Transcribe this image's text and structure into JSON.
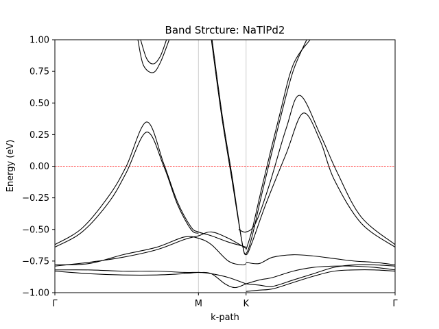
{
  "chart_data": {
    "type": "line",
    "title": "Band Strcture: NaTlPd2",
    "xlabel": "k-path",
    "ylabel": "Energy (eV)",
    "xlim": [
      0,
      5.0
    ],
    "ylim": [
      -1.0,
      1.0
    ],
    "xticks": [
      {
        "label": "Γ",
        "x": 0.0
      },
      {
        "label": "M",
        "x": 2.11
      },
      {
        "label": "K",
        "x": 2.81
      },
      {
        "label": "Γ",
        "x": 5.0
      }
    ],
    "yticks": [
      "−1.00",
      "−0.75",
      "−0.50",
      "−0.25",
      "0.00",
      "0.25",
      "0.50",
      "0.75",
      "1.00"
    ],
    "ytick_values": [
      -1.0,
      -0.75,
      -0.5,
      -0.25,
      0.0,
      0.25,
      0.5,
      0.75,
      1.0
    ],
    "fermi_level": 0.0,
    "grid": "vertical at high-symmetry points",
    "colors": {
      "band": "#000000",
      "fermi": "#ff0000",
      "vline": "#cccccc"
    },
    "series": [
      {
        "x": [
          0.0,
          0.4,
          0.8,
          1.05,
          1.35,
          1.6,
          1.8,
          2.0,
          2.11
        ],
        "y": [
          -0.64,
          -0.52,
          -0.28,
          -0.05,
          0.27,
          0.0,
          -0.3,
          -0.5,
          -0.53
        ]
      },
      {
        "x": [
          0.0,
          0.4,
          0.8,
          1.05,
          1.35,
          1.6,
          1.8,
          2.0,
          2.11,
          2.3,
          2.55,
          2.75,
          2.81
        ],
        "y": [
          -0.62,
          -0.49,
          -0.23,
          0.0,
          0.35,
          0.02,
          -0.28,
          -0.48,
          -0.52,
          -0.55,
          -0.6,
          -0.63,
          -0.64
        ]
      },
      {
        "x": [
          1.22,
          1.3,
          1.44,
          1.55,
          1.68
        ],
        "y": [
          1.0,
          0.8,
          0.74,
          0.82,
          1.0
        ]
      },
      {
        "x": [
          1.26,
          1.35,
          1.45,
          1.55,
          1.64
        ],
        "y": [
          1.0,
          0.85,
          0.81,
          0.87,
          1.0
        ]
      },
      {
        "x": [
          2.3,
          2.45,
          2.6,
          2.75,
          2.81,
          2.9,
          3.1,
          3.4,
          3.65,
          3.9,
          4.1,
          4.5,
          5.0
        ],
        "y": [
          1.0,
          0.4,
          -0.1,
          -0.6,
          -0.7,
          -0.6,
          -0.3,
          0.1,
          0.42,
          0.2,
          -0.1,
          -0.45,
          -0.64
        ]
      },
      {
        "x": [
          2.31,
          2.46,
          2.61,
          2.75,
          2.81,
          2.9,
          3.05,
          3.3,
          3.5,
          3.7
        ],
        "y": [
          1.0,
          0.4,
          -0.1,
          -0.6,
          -0.69,
          -0.55,
          -0.2,
          0.35,
          0.75,
          1.0
        ]
      },
      {
        "x": [
          2.81,
          2.9,
          3.05,
          3.3,
          3.5,
          3.75
        ],
        "y": [
          -0.66,
          -0.5,
          -0.15,
          0.4,
          0.8,
          1.0
        ]
      },
      {
        "x": [
          2.7,
          2.81,
          2.95,
          3.15,
          3.4,
          3.6,
          3.9,
          4.15,
          4.5,
          5.0
        ],
        "y": [
          -0.5,
          -0.52,
          -0.45,
          -0.15,
          0.3,
          0.56,
          0.25,
          -0.05,
          -0.4,
          -0.62
        ]
      },
      {
        "x": [
          0.0,
          0.5,
          1.0,
          1.5,
          1.9,
          2.11,
          2.3,
          2.55,
          2.81
        ],
        "y": [
          -0.79,
          -0.76,
          -0.72,
          -0.66,
          -0.58,
          -0.55,
          -0.52,
          -0.57,
          -0.65
        ]
      },
      {
        "x": [
          0.0,
          0.5,
          1.0,
          1.5,
          1.9,
          2.11,
          2.3,
          2.55,
          2.75,
          2.81
        ],
        "y": [
          -0.78,
          -0.77,
          -0.7,
          -0.64,
          -0.56,
          -0.57,
          -0.62,
          -0.75,
          -0.78,
          -0.77
        ]
      },
      {
        "x": [
          0.0,
          0.5,
          1.0,
          1.5,
          1.9,
          2.11,
          2.3,
          2.5,
          2.65,
          2.81
        ],
        "y": [
          -0.82,
          -0.82,
          -0.83,
          -0.83,
          -0.84,
          -0.84,
          -0.85,
          -0.93,
          -0.96,
          -0.93
        ]
      },
      {
        "x": [
          0.0,
          0.5,
          1.0,
          1.5,
          1.9,
          2.11,
          2.3,
          2.55,
          2.81
        ],
        "y": [
          -0.83,
          -0.85,
          -0.86,
          -0.86,
          -0.85,
          -0.84,
          -0.85,
          -0.88,
          -0.93
        ]
      },
      {
        "x": [
          2.81,
          3.0,
          3.2,
          3.5,
          3.8,
          4.1,
          4.4,
          4.7,
          5.0
        ],
        "y": [
          -0.76,
          -0.77,
          -0.72,
          -0.7,
          -0.71,
          -0.73,
          -0.75,
          -0.76,
          -0.78
        ]
      },
      {
        "x": [
          2.81,
          3.0,
          3.2,
          3.5,
          3.8,
          4.1,
          4.4,
          4.7,
          5.0
        ],
        "y": [
          -0.93,
          -0.9,
          -0.88,
          -0.83,
          -0.8,
          -0.79,
          -0.79,
          -0.8,
          -0.82
        ]
      },
      {
        "x": [
          2.81,
          3.0,
          3.2,
          3.5,
          3.8,
          4.1,
          4.4,
          4.7,
          5.0
        ],
        "y": [
          -0.99,
          -0.98,
          -0.97,
          -0.92,
          -0.87,
          -0.83,
          -0.82,
          -0.82,
          -0.83
        ]
      },
      {
        "x": [
          2.81,
          3.0,
          3.2,
          3.5,
          3.8,
          4.1,
          4.4,
          4.7,
          5.0
        ],
        "y": [
          -0.93,
          -0.94,
          -0.95,
          -0.9,
          -0.85,
          -0.8,
          -0.78,
          -0.78,
          -0.79
        ]
      }
    ]
  }
}
